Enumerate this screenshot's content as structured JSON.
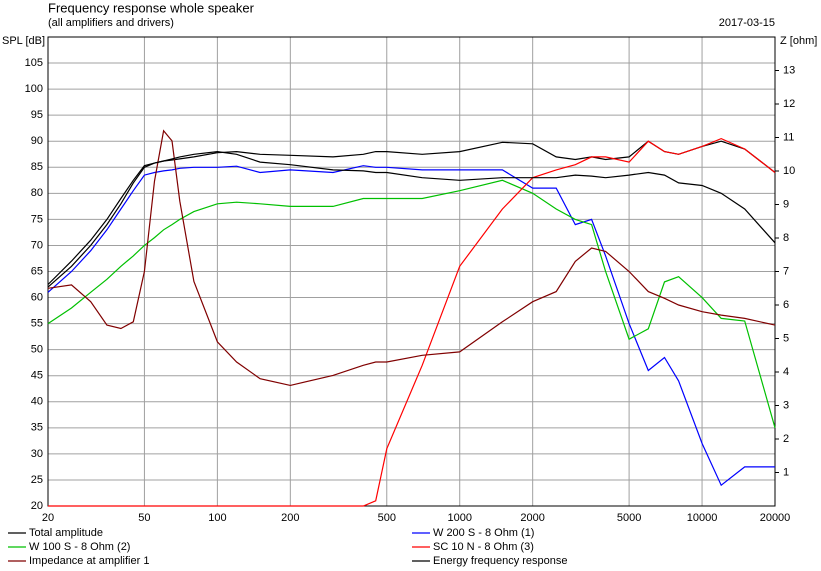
{
  "chart_data": {
    "type": "line",
    "title": "Frequency response whole speaker",
    "subtitle": "(all amplifiers and drivers)",
    "date": "2017-03-15",
    "y_label": "SPL [dB]",
    "y2_label": "Z [ohm]",
    "log_x": true,
    "grid": true,
    "xlim": [
      20,
      20000
    ],
    "xticks": [
      20,
      50,
      100,
      200,
      500,
      1000,
      2000,
      5000,
      10000,
      20000
    ],
    "ylim": [
      20,
      110
    ],
    "yticks": [
      20,
      25,
      30,
      35,
      40,
      45,
      50,
      55,
      60,
      65,
      70,
      75,
      80,
      85,
      90,
      95,
      100,
      105
    ],
    "y2lim": [
      0,
      14
    ],
    "y2ticks": [
      1,
      2,
      3,
      4,
      5,
      6,
      7,
      8,
      9,
      10,
      11,
      12,
      13
    ],
    "x": [
      20,
      25,
      30,
      35,
      40,
      45,
      50,
      55,
      60,
      65,
      70,
      80,
      100,
      120,
      150,
      200,
      300,
      400,
      450,
      500,
      700,
      1000,
      1500,
      2000,
      2500,
      3000,
      3500,
      4000,
      5000,
      6000,
      7000,
      8000,
      10000,
      12000,
      15000,
      20000
    ],
    "series": [
      {
        "name": "Total amplitude",
        "color": "#000000",
        "values": [
          62,
          66,
          70,
          74,
          78,
          82,
          85,
          85.8,
          86.2,
          86.4,
          86.6,
          87,
          87.8,
          88,
          87.5,
          87.3,
          87,
          87.5,
          88,
          88,
          87.5,
          88,
          89.8,
          89.5,
          87,
          86.5,
          87,
          86.5,
          87,
          90,
          88,
          87.5,
          89,
          90,
          88.5,
          84
        ]
      },
      {
        "name": "W 200 S - 8 Ohm (1)",
        "color": "#0000ff",
        "values": [
          61,
          65,
          69,
          73,
          77,
          80.5,
          83.5,
          84,
          84.3,
          84.5,
          84.8,
          85,
          85,
          85.2,
          84,
          84.5,
          84,
          85.3,
          85,
          85,
          84.5,
          84.5,
          84.5,
          81,
          81,
          74,
          75,
          68,
          55,
          46,
          48.5,
          44,
          32,
          24,
          27.5,
          27.5
        ]
      },
      {
        "name": "W 100 S - 8 Ohm (2)",
        "color": "#00c000",
        "values": [
          55,
          58,
          61,
          63.5,
          66,
          68,
          70,
          71.5,
          73,
          74,
          75,
          76.5,
          78,
          78.3,
          78,
          77.5,
          77.5,
          79,
          79,
          79,
          79,
          80.5,
          82.5,
          80,
          77,
          75,
          74,
          65,
          52,
          54,
          63,
          64,
          60,
          56,
          55.5,
          35
        ]
      },
      {
        "name": "SC 10 N - 8 Ohm (3)",
        "color": "#ff0000",
        "values": [
          20,
          20,
          20,
          20,
          20,
          20,
          20,
          20,
          20,
          20,
          20,
          20,
          20,
          20,
          20,
          20,
          20,
          20,
          21,
          31,
          47,
          66,
          77,
          83,
          84.5,
          85.5,
          87,
          87,
          86,
          90,
          88,
          87.5,
          89,
          90.5,
          88.5,
          84
        ]
      },
      {
        "name": "Impedance at amplifier 1",
        "color": "#800000",
        "axis": "y2",
        "values": [
          6.5,
          6.6,
          6.1,
          5.4,
          5.3,
          5.5,
          7.0,
          9.7,
          11.2,
          10.9,
          9.1,
          6.7,
          4.9,
          4.3,
          3.8,
          3.6,
          3.9,
          4.2,
          4.3,
          4.3,
          4.5,
          4.6,
          5.5,
          6.1,
          6.4,
          7.3,
          7.7,
          7.6,
          7.0,
          6.4,
          6.2,
          6.0,
          5.8,
          5.7,
          5.6,
          5.4
        ]
      },
      {
        "name": "Energy frequency response",
        "color": "#000000",
        "values": [
          62.5,
          67,
          71,
          75,
          79,
          82.5,
          85.3,
          85.8,
          86.2,
          86.6,
          87,
          87.5,
          88,
          87.5,
          86,
          85.5,
          84.5,
          84.3,
          84,
          84,
          83,
          82.5,
          83,
          83,
          83,
          83.5,
          83.3,
          83,
          83.5,
          84,
          83.5,
          82,
          81.5,
          80,
          77,
          70.5
        ]
      }
    ]
  }
}
